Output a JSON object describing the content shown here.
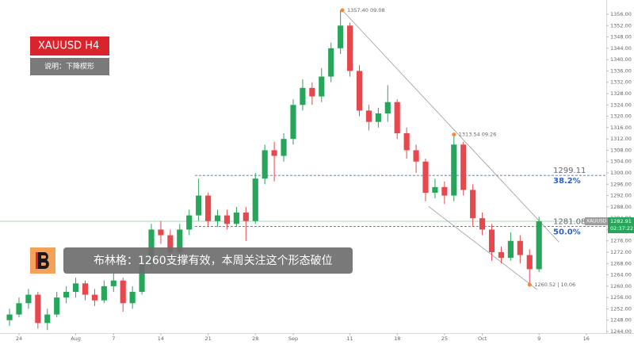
{
  "chart_data": {
    "type": "candlestick",
    "title": "XAUUSD  H4",
    "subtitle": "说明：下降楔形",
    "annotation": "布林格：1260支撑有效，本周关注这个形态破位",
    "up_color": "#26a65b",
    "down_color": "#e5484d",
    "x": [
      -1,
      0,
      1,
      2,
      3,
      4,
      5,
      6,
      7,
      8,
      9,
      10,
      11,
      12,
      13,
      14,
      15,
      16,
      17,
      18,
      19,
      20,
      21,
      22,
      23,
      24,
      25,
      26,
      27,
      28,
      29,
      30,
      31,
      32,
      33,
      34,
      35,
      36,
      37,
      38,
      39,
      40,
      41,
      42,
      43,
      44,
      45,
      46,
      47,
      48,
      49,
      50,
      51,
      52,
      53,
      54,
      55
    ],
    "open": [
      1248,
      1250,
      1254,
      1257,
      1247,
      1250,
      1256,
      1258,
      1261,
      1257,
      1255,
      1260,
      1262,
      1254,
      1258,
      1268,
      1280,
      1278,
      1272,
      1280,
      1285,
      1292,
      1283,
      1285,
      1282,
      1286,
      1283,
      1298,
      1308,
      1306,
      1312,
      1324,
      1330,
      1327,
      1334,
      1344,
      1352,
      1336,
      1322,
      1318,
      1321,
      1325,
      1314,
      1308,
      1304,
      1293,
      1295,
      1292,
      1310,
      1294,
      1284,
      1280,
      1272,
      1270,
      1276,
      1271,
      1266
    ],
    "high": [
      1252,
      1256,
      1259,
      1258,
      1252,
      1258,
      1260,
      1263,
      1262,
      1259,
      1262,
      1265,
      1263,
      1260,
      1270,
      1282,
      1283,
      1280,
      1282,
      1287,
      1298,
      1293,
      1287,
      1287,
      1288,
      1288,
      1300,
      1310,
      1311,
      1314,
      1326,
      1333,
      1332,
      1337,
      1346,
      1357.4,
      1353,
      1338,
      1324,
      1323,
      1331,
      1326,
      1316,
      1310,
      1305,
      1298,
      1297,
      1313.54,
      1311,
      1296,
      1286,
      1282,
      1274,
      1279,
      1278,
      1273,
      1284.5
    ],
    "low": [
      1246,
      1249,
      1252,
      1245,
      1244.5,
      1249,
      1254,
      1256,
      1255,
      1253,
      1254,
      1258,
      1251,
      1252,
      1257,
      1266,
      1275,
      1270,
      1271,
      1278,
      1283,
      1281,
      1281,
      1280,
      1281,
      1276,
      1282,
      1296,
      1297,
      1304,
      1310,
      1322,
      1324,
      1325,
      1332,
      1342,
      1334,
      1320,
      1315,
      1316,
      1318,
      1312,
      1305,
      1300,
      1290,
      1291,
      1289,
      1290,
      1292,
      1281,
      1278,
      1269,
      1268,
      1269,
      1268,
      1260.52,
      1265
    ],
    "close": [
      1250,
      1254,
      1257,
      1247,
      1250,
      1256,
      1258,
      1261,
      1257,
      1255,
      1260,
      1262,
      1254,
      1258,
      1268,
      1280,
      1278,
      1272,
      1280,
      1285,
      1292,
      1283,
      1285,
      1282,
      1286,
      1283,
      1298,
      1308,
      1306,
      1312,
      1324,
      1330,
      1327,
      1334,
      1344,
      1352,
      1336,
      1322,
      1318,
      1321,
      1325,
      1314,
      1308,
      1304,
      1293,
      1295,
      1292,
      1310,
      1294,
      1284,
      1280,
      1272,
      1270,
      1276,
      1271,
      1266,
      1282.91
    ],
    "xlim": [
      -2.01,
      62.11
    ],
    "ylim": [
      1241.2,
      1361.04
    ],
    "xticks": [
      {
        "value": 0,
        "label": "24"
      },
      {
        "value": 6,
        "label": "Aug"
      },
      {
        "value": 10,
        "label": "7"
      },
      {
        "value": 15,
        "label": "14"
      },
      {
        "value": 20,
        "label": "21"
      },
      {
        "value": 25,
        "label": "28"
      },
      {
        "value": 29,
        "label": "Sep"
      },
      {
        "value": 35,
        "label": "11"
      },
      {
        "value": 40,
        "label": "18"
      },
      {
        "value": 45,
        "label": "25"
      },
      {
        "value": 49,
        "label": "Oct"
      },
      {
        "value": 55,
        "label": "9"
      },
      {
        "value": 60,
        "label": "16"
      }
    ],
    "yticks": [
      {
        "value": 1244,
        "label": "1244.00"
      },
      {
        "value": 1248,
        "label": "1248.00"
      },
      {
        "value": 1252,
        "label": "1252.00"
      },
      {
        "value": 1256,
        "label": "1256.00"
      },
      {
        "value": 1260,
        "label": "1260.00"
      },
      {
        "value": 1264,
        "label": "1264.00"
      },
      {
        "value": 1268,
        "label": "1268.00"
      },
      {
        "value": 1272,
        "label": "1272.00"
      },
      {
        "value": 1276,
        "label": "1276.00"
      },
      {
        "value": 1280,
        "label": "1280.00"
      },
      {
        "value": 1284,
        "label": "1284.00"
      },
      {
        "value": 1288,
        "label": "1288.00"
      },
      {
        "value": 1292,
        "label": "1292.00"
      },
      {
        "value": 1296,
        "label": "1296.00"
      },
      {
        "value": 1300,
        "label": "1300.00"
      },
      {
        "value": 1304,
        "label": "1304.00"
      },
      {
        "value": 1308,
        "label": "1308.00"
      },
      {
        "value": 1312,
        "label": "1312.00"
      },
      {
        "value": 1316,
        "label": "1316.00"
      },
      {
        "value": 1320,
        "label": "1320.00"
      },
      {
        "value": 1324,
        "label": "1324.00"
      },
      {
        "value": 1328,
        "label": "1328.00"
      },
      {
        "value": 1332,
        "label": "1332.00"
      },
      {
        "value": 1336,
        "label": "1336.00"
      },
      {
        "value": 1340,
        "label": "1340.00"
      },
      {
        "value": 1344,
        "label": "1344.00"
      },
      {
        "value": 1348,
        "label": "1348.00"
      },
      {
        "value": 1352,
        "label": "1352.00"
      },
      {
        "value": 1356,
        "label": "1356.00"
      }
    ],
    "fib_levels": [
      {
        "value": 1299.11,
        "label": "1299.11",
        "pct": "38.2%",
        "start": 18.6
      },
      {
        "value": 1281.08,
        "label": "1281.08",
        "pct": "50.0%",
        "start": 18.6
      }
    ],
    "trendlines": [
      {
        "x1": 34.2,
        "y1": 1357.4,
        "x2": 57.1,
        "y2": 1275.6
      },
      {
        "x1": 43.3,
        "y1": 1288.2,
        "x2": 54.8,
        "y2": 1258.8
      }
    ],
    "points": [
      {
        "x": 34.2,
        "y": 1357.4,
        "price_label": "1357.40",
        "date_label": "09.08"
      },
      {
        "x": 46,
        "y": 1313.54,
        "price_label": "1313.54",
        "date_label": "09.26"
      },
      {
        "x": 54,
        "y": 1260.52,
        "price_label": "1260.52",
        "date_label": "| 10.06"
      }
    ],
    "last_price": {
      "value": 1282.91,
      "label": "1282.91",
      "symbol": "XAUUSD",
      "countdown": "02:37:22"
    }
  }
}
